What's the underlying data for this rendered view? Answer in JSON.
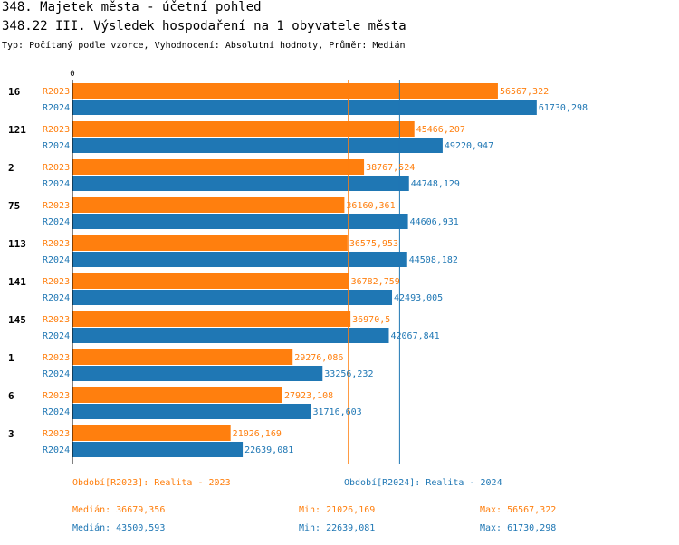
{
  "header": {
    "title": "348. Majetek města - účetní pohled",
    "subtitle": "348.22 III. Výsledek hospodaření na 1 obyvatele města",
    "info": "Typ: Počítaný podle vzorce, Vyhodnocení: Absolutní hodnoty, Průměr: Medián"
  },
  "chart_data": {
    "type": "bar",
    "orientation": "horizontal",
    "axis_zero_label": "0",
    "xlim": [
      0,
      65000
    ],
    "categories": [
      "16",
      "121",
      "2",
      "75",
      "113",
      "141",
      "145",
      "1",
      "6",
      "3"
    ],
    "series": [
      {
        "name": "R2023",
        "color": "#ff7f0e",
        "values": [
          56567.322,
          45466.207,
          38767.524,
          36160.361,
          36575.953,
          36782.759,
          36970.5,
          29276.086,
          27923.108,
          21026.169
        ],
        "labels": [
          "56567,322",
          "45466,207",
          "38767,524",
          "36160,361",
          "36575,953",
          "36782,759",
          "36970,5",
          "29276,086",
          "27923,108",
          "21026,169"
        ]
      },
      {
        "name": "R2024",
        "color": "#1f77b4",
        "values": [
          61730.298,
          49220.947,
          44748.129,
          44606.931,
          44508.182,
          42493.005,
          42067.841,
          33256.232,
          31716.603,
          22639.081
        ],
        "labels": [
          "61730,298",
          "49220,947",
          "44748,129",
          "44606,931",
          "44508,182",
          "42493,005",
          "42067,841",
          "33256,232",
          "31716,603",
          "22639,081"
        ]
      }
    ],
    "medians": [
      {
        "series": "R2023",
        "value": 36679.356
      },
      {
        "series": "R2024",
        "value": 43500.593
      }
    ]
  },
  "legend": {
    "r2023": "Období[R2023]: Realita - 2023",
    "r2024": "Období[R2024]: Realita - 2024"
  },
  "stats": {
    "r2023": {
      "median": "Medián: 36679,356",
      "min": "Min: 21026,169",
      "max": "Max: 56567,322"
    },
    "r2024": {
      "median": "Medián: 43500,593",
      "min": "Min: 22639,081",
      "max": "Max: 61730,298"
    }
  }
}
